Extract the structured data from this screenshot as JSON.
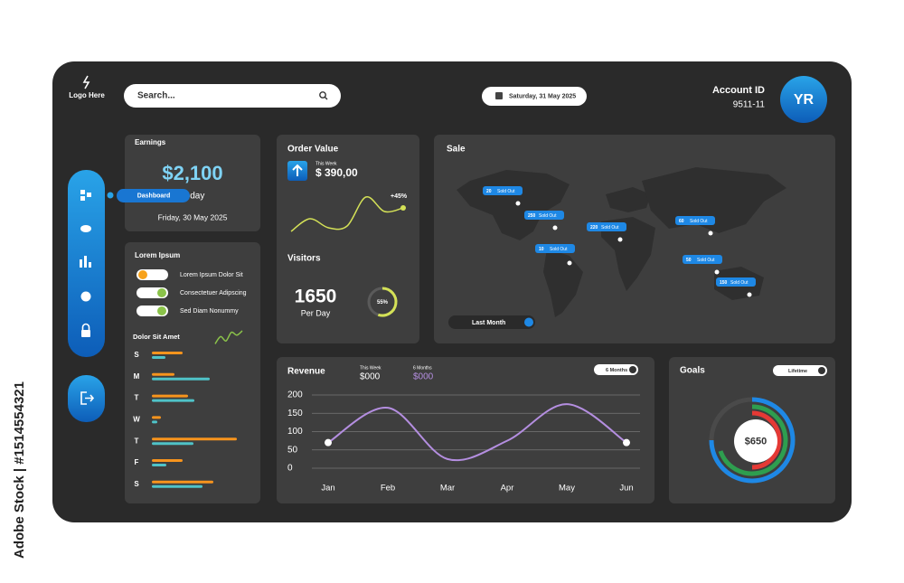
{
  "watermark": "Adobe Stock | #1514554321",
  "header": {
    "logo": "Logo Here",
    "search": "Search...",
    "date": "Saturday, 31 May 2025",
    "account_label": "Account ID",
    "account_id": "9511-11",
    "avatar": "YR"
  },
  "sidebar": {
    "tooltip": "Dashboard"
  },
  "earnings": {
    "title": "Earnings",
    "value": "$2,100",
    "period": "Today",
    "date": "Friday, 30 May 2025"
  },
  "lorem": {
    "title": "Lorem Ipsum",
    "toggles": [
      {
        "label": "Lorem Ipsum Dolor Sit",
        "on": false
      },
      {
        "label": "Consectetuer Adipscing",
        "on": true
      },
      {
        "label": "Sed Diam Nonummy",
        "on": true
      }
    ]
  },
  "order": {
    "title": "Order Value",
    "period": "This Week",
    "value": "$ 390,00",
    "change": "+45%"
  },
  "visitors": {
    "title": "Visitors",
    "value": "1650",
    "unit": "Per Day",
    "gauge": {
      "value": 55,
      "label": "55%"
    }
  },
  "sale": {
    "title": "Sale",
    "filter": "Last Month",
    "pins": [
      {
        "count": "20",
        "label": "Sold Out"
      },
      {
        "count": "250",
        "label": "Sold Out"
      },
      {
        "count": "220",
        "label": "Sold Out"
      },
      {
        "count": "10",
        "label": "Sold Out"
      },
      {
        "count": "60",
        "label": "Sold Out"
      },
      {
        "count": "50",
        "label": "Sold Out"
      },
      {
        "count": "150",
        "label": "Sold Out"
      }
    ]
  },
  "revenue": {
    "title": "Revenue",
    "stats": [
      {
        "label": "This Week",
        "value": "$000"
      },
      {
        "label": "6 Months",
        "value": "$000"
      }
    ],
    "filter": "6 Months"
  },
  "goals": {
    "title": "Goals",
    "filter": "Lifetime",
    "value": "$650"
  },
  "chart_data": [
    {
      "type": "line",
      "categories": [
        "Jan",
        "Feb",
        "Mar",
        "Apr",
        "May",
        "Jun"
      ],
      "series": [
        {
          "color": "#b48ee0",
          "values": [
            70,
            165,
            25,
            75,
            175,
            70
          ]
        }
      ],
      "ylim": [
        0,
        200
      ],
      "yticks": [
        0,
        50,
        100,
        150,
        200
      ],
      "grid": true
    },
    {
      "type": "hbar",
      "title": "Dolor Sit Amet",
      "categories": [
        "S",
        "M",
        "T",
        "W",
        "T",
        "F",
        "S"
      ],
      "series": [
        {
          "color": "#f7941d",
          "values": [
            34,
            25,
            40,
            10,
            94,
            34,
            68
          ]
        },
        {
          "color": "#4fc3c8",
          "values": [
            15,
            64,
            47,
            6,
            46,
            16,
            56
          ]
        }
      ],
      "xlim": [
        0,
        100
      ]
    },
    {
      "type": "line",
      "series": [
        {
          "color": "#d4e157",
          "values": [
            5,
            40,
            15,
            20,
            100,
            60,
            70
          ]
        }
      ],
      "ylim": [
        0,
        100
      ]
    },
    {
      "type": "line",
      "series": [
        {
          "color": "#8bc34a",
          "values": [
            10,
            60,
            30,
            90,
            70,
            100
          ]
        }
      ],
      "ylim": [
        0,
        100
      ]
    }
  ]
}
